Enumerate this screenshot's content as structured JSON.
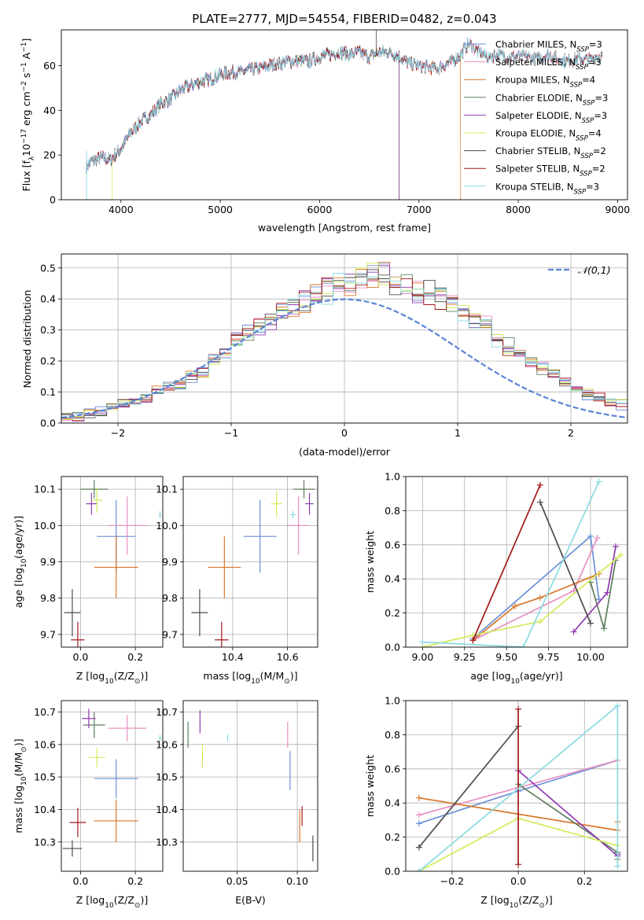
{
  "figure_title": "PLATE=2777, MJD=54554, FIBERID=0482, z=0.043",
  "colors": {
    "Chabrier MILES": "#6a8fd8",
    "Salpeter MILES": "#e88fc3",
    "Kroupa MILES": "#d9762a",
    "Chabrier ELODIE": "#5e7d5e",
    "Salpeter ELODIE": "#8f3bb0",
    "Kroupa ELODIE": "#d2ec5a",
    "Chabrier STELIB": "#4d4d4d",
    "Salpeter STELIB": "#a31818",
    "Kroupa STELIB": "#8bdbe0"
  },
  "chart_data": [
    {
      "id": "spectrum",
      "type": "line",
      "title": "",
      "xlabel": "wavelength [Angstrom, rest frame]",
      "ylabel": "Flux [f_λ10^-17 erg cm^-2 s^-1 A^-1]",
      "xlim": [
        3400,
        9100
      ],
      "ylim": [
        0,
        76
      ],
      "xticks": [
        4000,
        5000,
        6000,
        7000,
        8000,
        9000
      ],
      "yticks": [
        0,
        20,
        40,
        60
      ],
      "legend": "upper-right",
      "legend_entries": [
        {
          "model": "Chabrier MILES",
          "n": "3"
        },
        {
          "model": "Salpeter MILES",
          "n": "3"
        },
        {
          "model": "Kroupa MILES",
          "n": "4"
        },
        {
          "model": "Chabrier ELODIE",
          "n": "3"
        },
        {
          "model": "Salpeter ELODIE",
          "n": "3"
        },
        {
          "model": "Kroupa ELODIE",
          "n": "4"
        },
        {
          "model": "Chabrier STELIB",
          "n": "2"
        },
        {
          "model": "Salpeter STELIB",
          "n": "2"
        },
        {
          "model": "Kroupa STELIB",
          "n": "3"
        }
      ],
      "continuum": [
        [
          3650,
          15
        ],
        [
          3700,
          17
        ],
        [
          3800,
          19
        ],
        [
          3900,
          18
        ],
        [
          4000,
          23
        ],
        [
          4100,
          30
        ],
        [
          4200,
          35
        ],
        [
          4300,
          38
        ],
        [
          4400,
          43
        ],
        [
          4500,
          45
        ],
        [
          4600,
          49
        ],
        [
          4700,
          51
        ],
        [
          4800,
          53
        ],
        [
          4900,
          54
        ],
        [
          5000,
          56
        ],
        [
          5100,
          57
        ],
        [
          5200,
          57
        ],
        [
          5300,
          58
        ],
        [
          5400,
          59
        ],
        [
          5500,
          60
        ],
        [
          5600,
          61
        ],
        [
          5700,
          62
        ],
        [
          5800,
          62
        ],
        [
          5900,
          62
        ],
        [
          6000,
          64
        ],
        [
          6100,
          65
        ],
        [
          6200,
          66
        ],
        [
          6300,
          65
        ],
        [
          6400,
          66
        ],
        [
          6500,
          64
        ],
        [
          6600,
          66
        ],
        [
          6700,
          66
        ],
        [
          6800,
          64
        ],
        [
          6900,
          61
        ],
        [
          7000,
          60
        ],
        [
          7100,
          59
        ],
        [
          7200,
          59
        ],
        [
          7300,
          61
        ],
        [
          7400,
          64
        ],
        [
          7500,
          70
        ],
        [
          7600,
          66
        ],
        [
          7700,
          64
        ],
        [
          7800,
          65
        ],
        [
          7900,
          64
        ],
        [
          8000,
          64
        ],
        [
          8100,
          64
        ],
        [
          8200,
          63
        ],
        [
          8300,
          65
        ],
        [
          8400,
          63
        ],
        [
          8500,
          62
        ],
        [
          8600,
          63
        ],
        [
          8700,
          63
        ],
        [
          8800,
          64
        ]
      ],
      "range_ends": {
        "Chabrier MILES": [
          3650,
          8850
        ],
        "Salpeter MILES": [
          3650,
          8850
        ],
        "Kroupa MILES": [
          3650,
          7420
        ],
        "Chabrier ELODIE": [
          3650,
          6800
        ],
        "Salpeter ELODIE": [
          3650,
          6800
        ],
        "Kroupa ELODIE": [
          3910,
          6800
        ],
        "Chabrier STELIB": [
          3650,
          8850
        ],
        "Salpeter STELIB": [
          3650,
          8850
        ],
        "Kroupa STELIB": [
          3650,
          8850
        ]
      }
    },
    {
      "id": "residuals",
      "type": "histogram",
      "title": "",
      "xlabel": "(data-model)/error",
      "ylabel": "Normed distribution",
      "xlim": [
        -2.5,
        2.5
      ],
      "ylim": [
        0,
        0.545
      ],
      "xticks": [
        -2,
        -1,
        0,
        1,
        2
      ],
      "yticks": [
        0.0,
        0.1,
        0.2,
        0.3,
        0.4,
        0.5
      ],
      "legend": "upper-right",
      "gaussian_label": "𝒩(0,1)",
      "gaussian_color": "#5b84d6",
      "bin_width": 0.1,
      "hist_reference": [
        0.02,
        0.02,
        0.03,
        0.04,
        0.05,
        0.06,
        0.07,
        0.08,
        0.1,
        0.12,
        0.13,
        0.15,
        0.17,
        0.2,
        0.23,
        0.27,
        0.29,
        0.31,
        0.33,
        0.36,
        0.38,
        0.39,
        0.41,
        0.43,
        0.45,
        0.46,
        0.47,
        0.48,
        0.47,
        0.46,
        0.44,
        0.43,
        0.42,
        0.4,
        0.38,
        0.36,
        0.33,
        0.31,
        0.28,
        0.25,
        0.22,
        0.2,
        0.18,
        0.16,
        0.13,
        0.11,
        0.09,
        0.08,
        0.07,
        0.06
      ]
    },
    {
      "id": "age-vs-Z",
      "type": "scatter-errorbar",
      "xlabel": "Z [log10(Z/Z☉)]",
      "ylabel": "age [log10(age/yr)]",
      "xlim": [
        -0.07,
        0.3
      ],
      "ylim": [
        9.665,
        10.135
      ],
      "xticks": [
        0.0,
        0.2
      ],
      "yticks": [
        9.7,
        9.8,
        9.9,
        10.0,
        10.1
      ],
      "points": [
        {
          "model": "Chabrier MILES",
          "x": 0.13,
          "y": 9.97,
          "xerr": 0.07,
          "yerr": 0.1
        },
        {
          "model": "Salpeter MILES",
          "x": 0.17,
          "y": 10.0,
          "xerr": 0.07,
          "yerr": 0.08
        },
        {
          "model": "Kroupa MILES",
          "x": 0.13,
          "y": 9.885,
          "xerr": 0.08,
          "yerr": 0.085
        },
        {
          "model": "Chabrier ELODIE",
          "x": 0.05,
          "y": 10.1,
          "xerr": 0.05,
          "yerr": 0.025
        },
        {
          "model": "Salpeter ELODIE",
          "x": 0.04,
          "y": 10.06,
          "xerr": 0.02,
          "yerr": 0.03
        },
        {
          "model": "Kroupa ELODIE",
          "x": 0.06,
          "y": 10.07,
          "xerr": 0.02,
          "yerr": 0.035
        },
        {
          "model": "Chabrier STELIB",
          "x": -0.03,
          "y": 9.76,
          "xerr": 0.03,
          "yerr": 0.065
        },
        {
          "model": "Salpeter STELIB",
          "x": -0.01,
          "y": 9.685,
          "xerr": 0.025,
          "yerr": 0.05
        },
        {
          "model": "Kroupa STELIB",
          "x": 0.29,
          "y": 10.03,
          "xerr": 0.005,
          "yerr": 0.01
        }
      ]
    },
    {
      "id": "age-vs-mass",
      "type": "scatter-errorbar",
      "xlabel": "mass [log10(M/M☉)]",
      "ylabel": "",
      "xlim": [
        10.22,
        10.71
      ],
      "ylim": [
        9.665,
        10.135
      ],
      "xticks": [
        10.4,
        10.6
      ],
      "yticks": [
        9.7,
        9.8,
        9.9,
        10.0,
        10.1
      ],
      "points": [
        {
          "model": "Chabrier MILES",
          "x": 10.5,
          "y": 9.97,
          "xerr": 0.06,
          "yerr": 0.1
        },
        {
          "model": "Salpeter MILES",
          "x": 10.64,
          "y": 10.0,
          "xerr": 0.04,
          "yerr": 0.08
        },
        {
          "model": "Kroupa MILES",
          "x": 10.37,
          "y": 9.885,
          "xerr": 0.06,
          "yerr": 0.085
        },
        {
          "model": "Chabrier ELODIE",
          "x": 10.66,
          "y": 10.1,
          "xerr": 0.04,
          "yerr": 0.025
        },
        {
          "model": "Salpeter ELODIE",
          "x": 10.68,
          "y": 10.06,
          "xerr": 0.015,
          "yerr": 0.03
        },
        {
          "model": "Kroupa ELODIE",
          "x": 10.56,
          "y": 10.06,
          "xerr": 0.02,
          "yerr": 0.035
        },
        {
          "model": "Chabrier STELIB",
          "x": 10.28,
          "y": 9.76,
          "xerr": 0.03,
          "yerr": 0.065
        },
        {
          "model": "Salpeter STELIB",
          "x": 10.36,
          "y": 9.685,
          "xerr": 0.025,
          "yerr": 0.05
        },
        {
          "model": "Kroupa STELIB",
          "x": 10.62,
          "y": 10.03,
          "xerr": 0.01,
          "yerr": 0.01
        }
      ]
    },
    {
      "id": "mass-weight-vs-age",
      "type": "line",
      "xlabel": "age [log10(age/yr)]",
      "ylabel": "mass weight",
      "xlim": [
        8.9,
        10.22
      ],
      "ylim": [
        0,
        1
      ],
      "xticks": [
        9.0,
        9.25,
        9.5,
        9.75,
        10.0
      ],
      "xtick_labels": [
        "9.00",
        "9.25",
        "9.50",
        "9.75",
        "10.00"
      ],
      "yticks": [
        0.0,
        0.2,
        0.4,
        0.6,
        0.8,
        1.0
      ],
      "series": [
        {
          "model": "Chabrier MILES",
          "x": [
            9.3,
            10.0,
            10.05
          ],
          "y": [
            0.05,
            0.65,
            0.28
          ]
        },
        {
          "model": "Salpeter MILES",
          "x": [
            9.3,
            9.9,
            10.04
          ],
          "y": [
            0.04,
            0.33,
            0.64
          ]
        },
        {
          "model": "Kroupa MILES",
          "x": [
            9.3,
            9.55,
            9.7,
            10.05
          ],
          "y": [
            0.04,
            0.24,
            0.29,
            0.43
          ]
        },
        {
          "model": "Chabrier ELODIE",
          "x": [
            10.0,
            10.08,
            10.15
          ],
          "y": [
            0.38,
            0.11,
            0.51
          ]
        },
        {
          "model": "Salpeter ELODIE",
          "x": [
            9.9,
            10.1,
            10.15
          ],
          "y": [
            0.09,
            0.32,
            0.59
          ]
        },
        {
          "model": "Kroupa ELODIE",
          "x": [
            9.0,
            9.3,
            9.7,
            10.18
          ],
          "y": [
            0.0,
            0.07,
            0.15,
            0.54
          ]
        },
        {
          "model": "Chabrier STELIB",
          "x": [
            9.7,
            10.0
          ],
          "y": [
            0.85,
            0.14
          ]
        },
        {
          "model": "Salpeter STELIB",
          "x": [
            9.3,
            9.7
          ],
          "y": [
            0.04,
            0.95
          ]
        },
        {
          "model": "Kroupa STELIB",
          "x": [
            9.0,
            9.6,
            10.05
          ],
          "y": [
            0.03,
            0.0,
            0.97
          ]
        }
      ]
    },
    {
      "id": "mass-vs-Z",
      "type": "scatter-errorbar",
      "xlabel": "Z [log10(Z/Z☉)]",
      "ylabel": "mass [log10(M/M☉)]",
      "xlim": [
        -0.07,
        0.3
      ],
      "ylim": [
        10.21,
        10.735
      ],
      "xticks": [
        0.0,
        0.2
      ],
      "yticks": [
        10.3,
        10.4,
        10.5,
        10.6,
        10.7
      ],
      "points": [
        {
          "model": "Chabrier MILES",
          "x": 0.13,
          "y": 10.495,
          "xerr": 0.08,
          "yerr": 0.06
        },
        {
          "model": "Salpeter MILES",
          "x": 0.17,
          "y": 10.65,
          "xerr": 0.07,
          "yerr": 0.04
        },
        {
          "model": "Kroupa MILES",
          "x": 0.13,
          "y": 10.365,
          "xerr": 0.08,
          "yerr": 0.065
        },
        {
          "model": "Chabrier ELODIE",
          "x": 0.05,
          "y": 10.66,
          "xerr": 0.04,
          "yerr": 0.04
        },
        {
          "model": "Salpeter ELODIE",
          "x": 0.03,
          "y": 10.68,
          "xerr": 0.025,
          "yerr": 0.03
        },
        {
          "model": "Kroupa ELODIE",
          "x": 0.06,
          "y": 10.56,
          "xerr": 0.03,
          "yerr": 0.03
        },
        {
          "model": "Chabrier STELIB",
          "x": -0.03,
          "y": 10.28,
          "xerr": 0.035,
          "yerr": 0.025
        },
        {
          "model": "Salpeter STELIB",
          "x": -0.01,
          "y": 10.36,
          "xerr": 0.03,
          "yerr": 0.045
        },
        {
          "model": "Kroupa STELIB",
          "x": 0.29,
          "y": 10.62,
          "xerr": 0.005,
          "yerr": 0.01
        }
      ]
    },
    {
      "id": "mass-vs-ebv",
      "type": "scatter-errorbar",
      "xlabel": "E(B-V)",
      "ylabel": "",
      "xlim": [
        0.005,
        0.117
      ],
      "ylim": [
        10.21,
        10.735
      ],
      "xticks": [
        0.05,
        0.1
      ],
      "xtick_labels": [
        "0.05",
        "0.10"
      ],
      "yticks": [
        10.3,
        10.4,
        10.5,
        10.6,
        10.7
      ],
      "points": [
        {
          "model": "Chabrier MILES",
          "x": 0.094,
          "y": 10.52,
          "xerr": 0.0,
          "yerr": 0.06
        },
        {
          "model": "Salpeter MILES",
          "x": 0.092,
          "y": 10.63,
          "xerr": 0.0,
          "yerr": 0.04
        },
        {
          "model": "Kroupa MILES",
          "x": 0.102,
          "y": 10.35,
          "xerr": 0.0,
          "yerr": 0.05
        },
        {
          "model": "Chabrier ELODIE",
          "x": 0.009,
          "y": 10.63,
          "xerr": 0.0,
          "yerr": 0.04
        },
        {
          "model": "Salpeter ELODIE",
          "x": 0.019,
          "y": 10.67,
          "xerr": 0.0,
          "yerr": 0.035
        },
        {
          "model": "Kroupa ELODIE",
          "x": 0.021,
          "y": 10.565,
          "xerr": 0.0,
          "yerr": 0.035
        },
        {
          "model": "Chabrier STELIB",
          "x": 0.113,
          "y": 10.28,
          "xerr": 0.0,
          "yerr": 0.04
        },
        {
          "model": "Salpeter STELIB",
          "x": 0.104,
          "y": 10.38,
          "xerr": 0.0,
          "yerr": 0.03
        },
        {
          "model": "Kroupa STELIB",
          "x": 0.042,
          "y": 10.62,
          "xerr": 0.0,
          "yerr": 0.012
        }
      ]
    },
    {
      "id": "mass-weight-vs-Z",
      "type": "line",
      "xlabel": "Z [log10(Z/Z☉)]",
      "ylabel": "mass weight",
      "xlim": [
        -0.34,
        0.33
      ],
      "ylim": [
        0,
        1
      ],
      "xticks": [
        -0.2,
        0.0,
        0.2
      ],
      "yticks": [
        0.0,
        0.2,
        0.4,
        0.6,
        0.8,
        1.0
      ],
      "series": [
        {
          "model": "Chabrier MILES",
          "x": [
            -0.3,
            0.0,
            0.3
          ],
          "y": [
            0.28,
            0.47,
            0.65
          ]
        },
        {
          "model": "Salpeter MILES",
          "x": [
            -0.3,
            0.0,
            0.3
          ],
          "y": [
            0.33,
            0.49,
            0.65
          ]
        },
        {
          "model": "Kroupa MILES",
          "x": [
            -0.3,
            0.3,
            0.3
          ],
          "y": [
            0.43,
            0.24,
            0.29
          ]
        },
        {
          "model": "Chabrier ELODIE",
          "x": [
            0.0,
            0.3,
            0.3
          ],
          "y": [
            0.51,
            0.11,
            0.07
          ]
        },
        {
          "model": "Salpeter ELODIE",
          "x": [
            0.0,
            0.3,
            0.3
          ],
          "y": [
            0.59,
            0.09,
            0.1
          ]
        },
        {
          "model": "Kroupa ELODIE",
          "x": [
            -0.3,
            0.0,
            0.3
          ],
          "y": [
            0.0,
            0.31,
            0.15
          ]
        },
        {
          "model": "Chabrier STELIB",
          "x": [
            -0.3,
            0.0
          ],
          "y": [
            0.14,
            0.85
          ]
        },
        {
          "model": "Salpeter STELIB",
          "x": [
            0.0,
            0.0
          ],
          "y": [
            0.04,
            0.95
          ]
        },
        {
          "model": "Kroupa STELIB",
          "x": [
            -0.3,
            0.3,
            0.3
          ],
          "y": [
            0.0,
            0.97,
            0.03
          ]
        }
      ]
    }
  ]
}
